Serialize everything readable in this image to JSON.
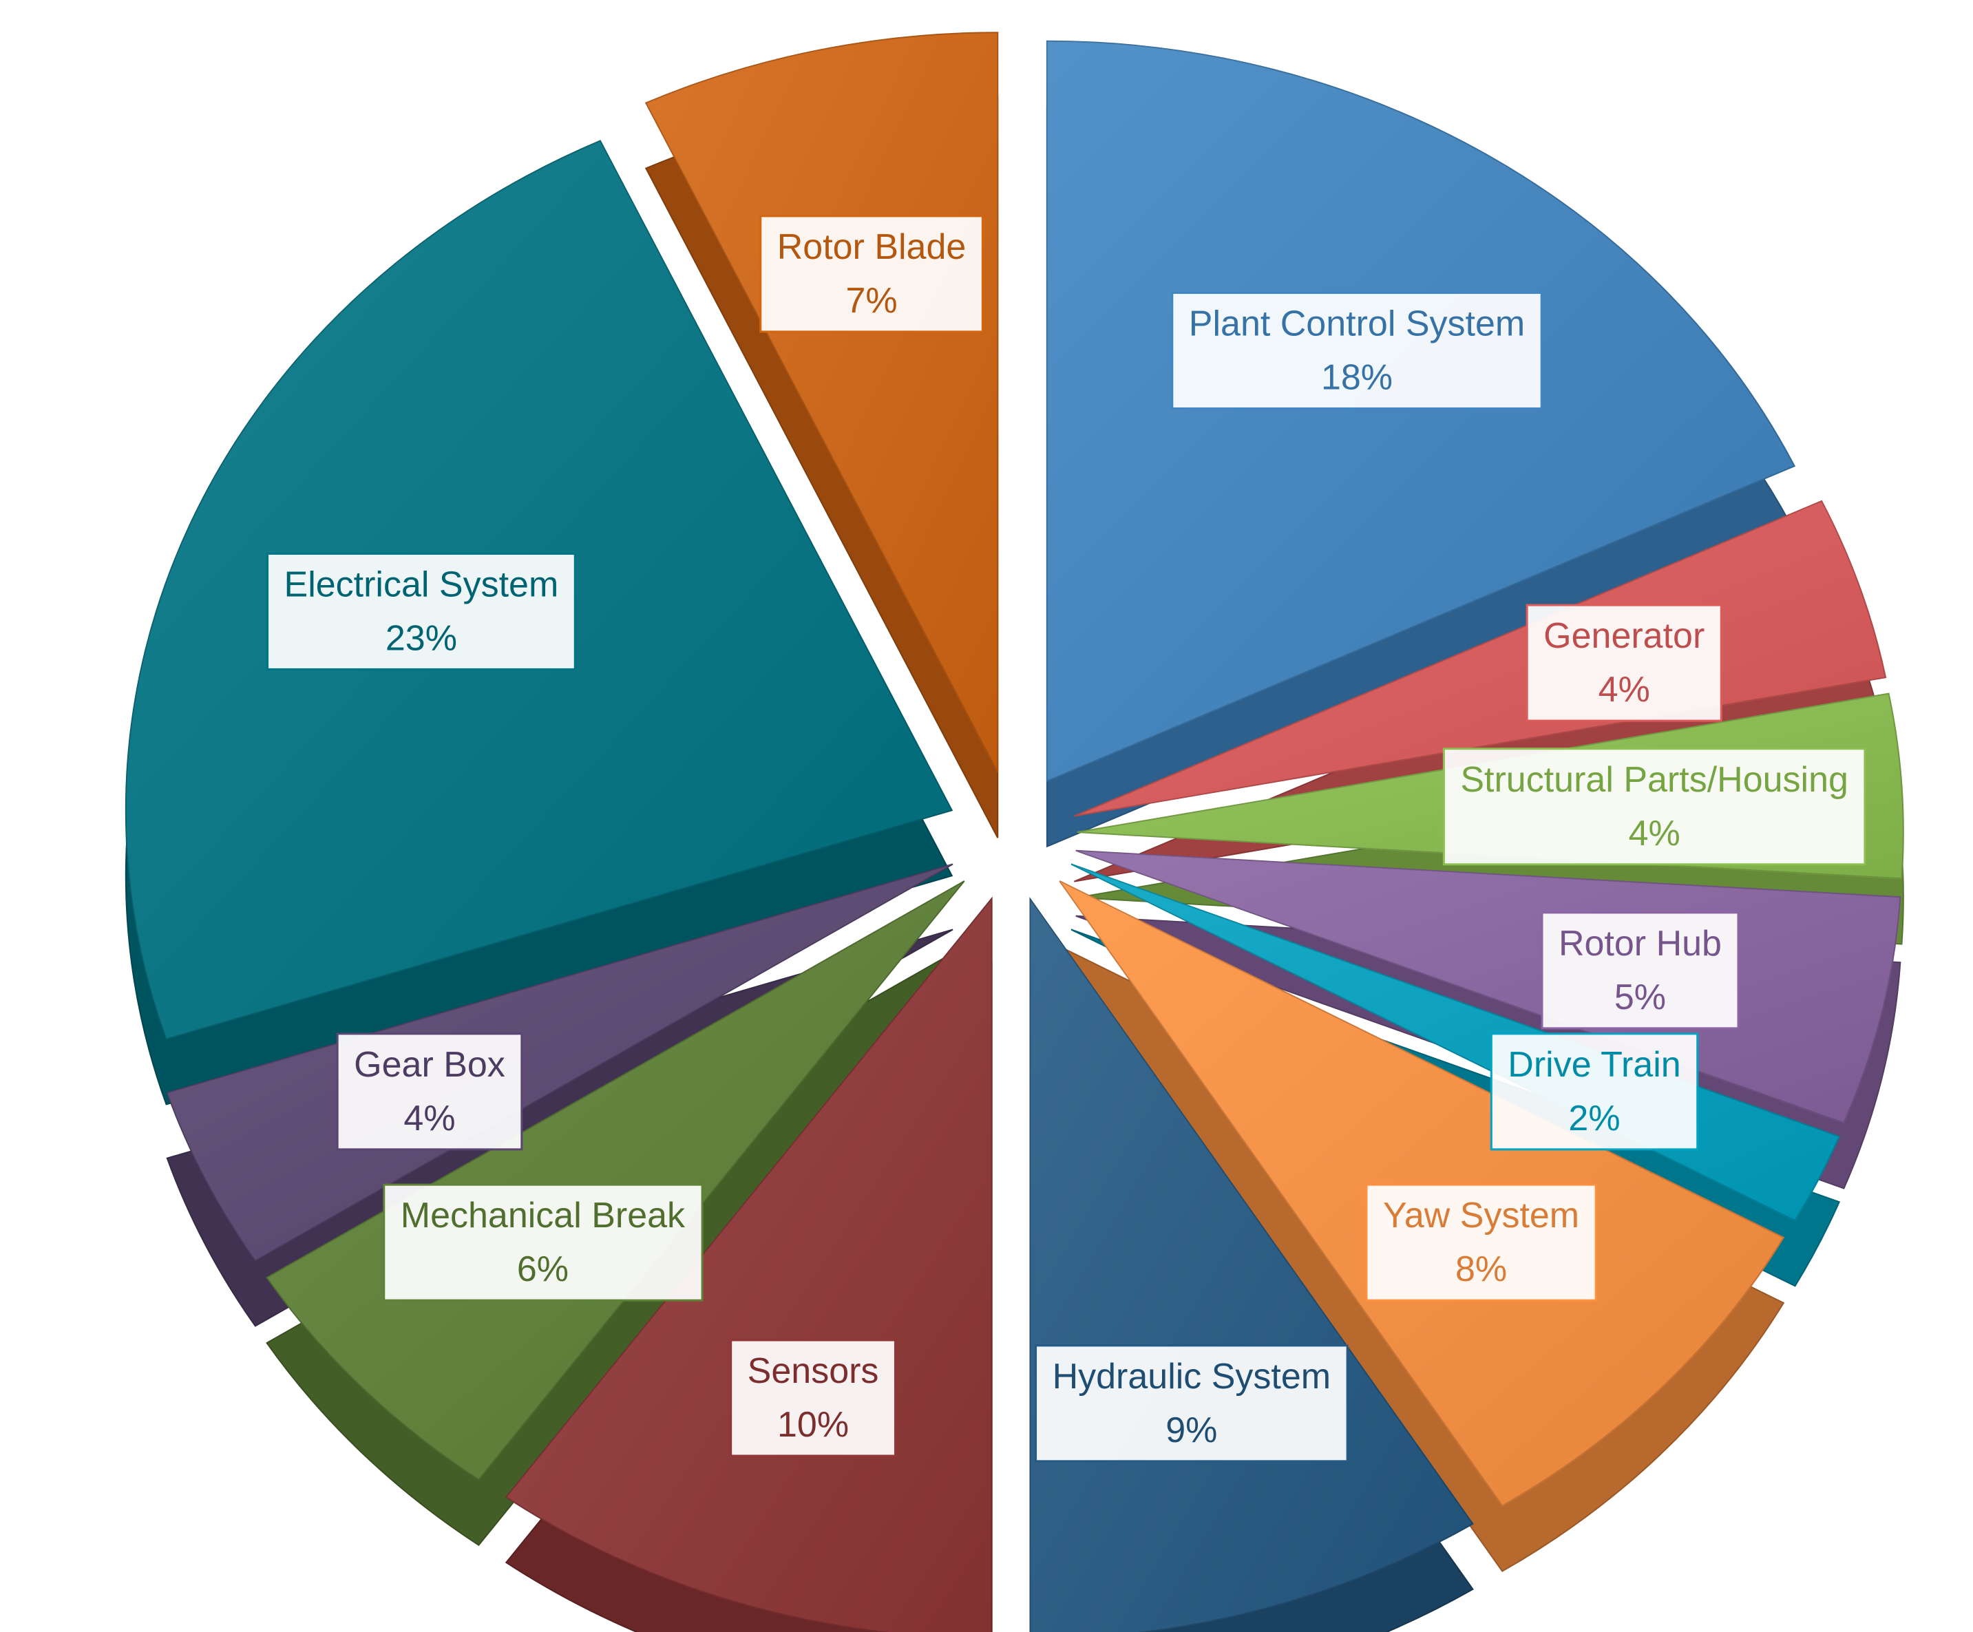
{
  "chart_data": {
    "type": "pie",
    "style": "exploded-3d",
    "slices": [
      {
        "label": "Plant Control System",
        "value": 18,
        "display": "18%",
        "color": "#3f86c3"
      },
      {
        "label": "Generator",
        "value": 4,
        "display": "4%",
        "color": "#e05a5a"
      },
      {
        "label": "Structural Parts/Housing",
        "value": 4,
        "display": "4%",
        "color": "#8cc14f"
      },
      {
        "label": "Rotor Hub",
        "value": 5,
        "display": "5%",
        "color": "#8a64a3"
      },
      {
        "label": "Drive Train",
        "value": 2,
        "display": "2%",
        "color": "#00a4c4"
      },
      {
        "label": "Yaw System",
        "value": 8,
        "display": "8%",
        "color": "#ff9240"
      },
      {
        "label": "Hydraulic System",
        "value": 9,
        "display": "9%",
        "color": "#245a85"
      },
      {
        "label": "Sensors",
        "value": 10,
        "display": "10%",
        "color": "#923637"
      },
      {
        "label": "Mechanical Break",
        "value": 6,
        "display": "6%",
        "color": "#5e8236"
      },
      {
        "label": "Gear Box",
        "value": 4,
        "display": "4%",
        "color": "#5a4672"
      },
      {
        "label": "Electrical System",
        "value": 23,
        "display": "23%",
        "color": "#007585"
      },
      {
        "label": "Rotor Blade",
        "value": 7,
        "display": "7%",
        "color": "#d46612"
      }
    ]
  }
}
